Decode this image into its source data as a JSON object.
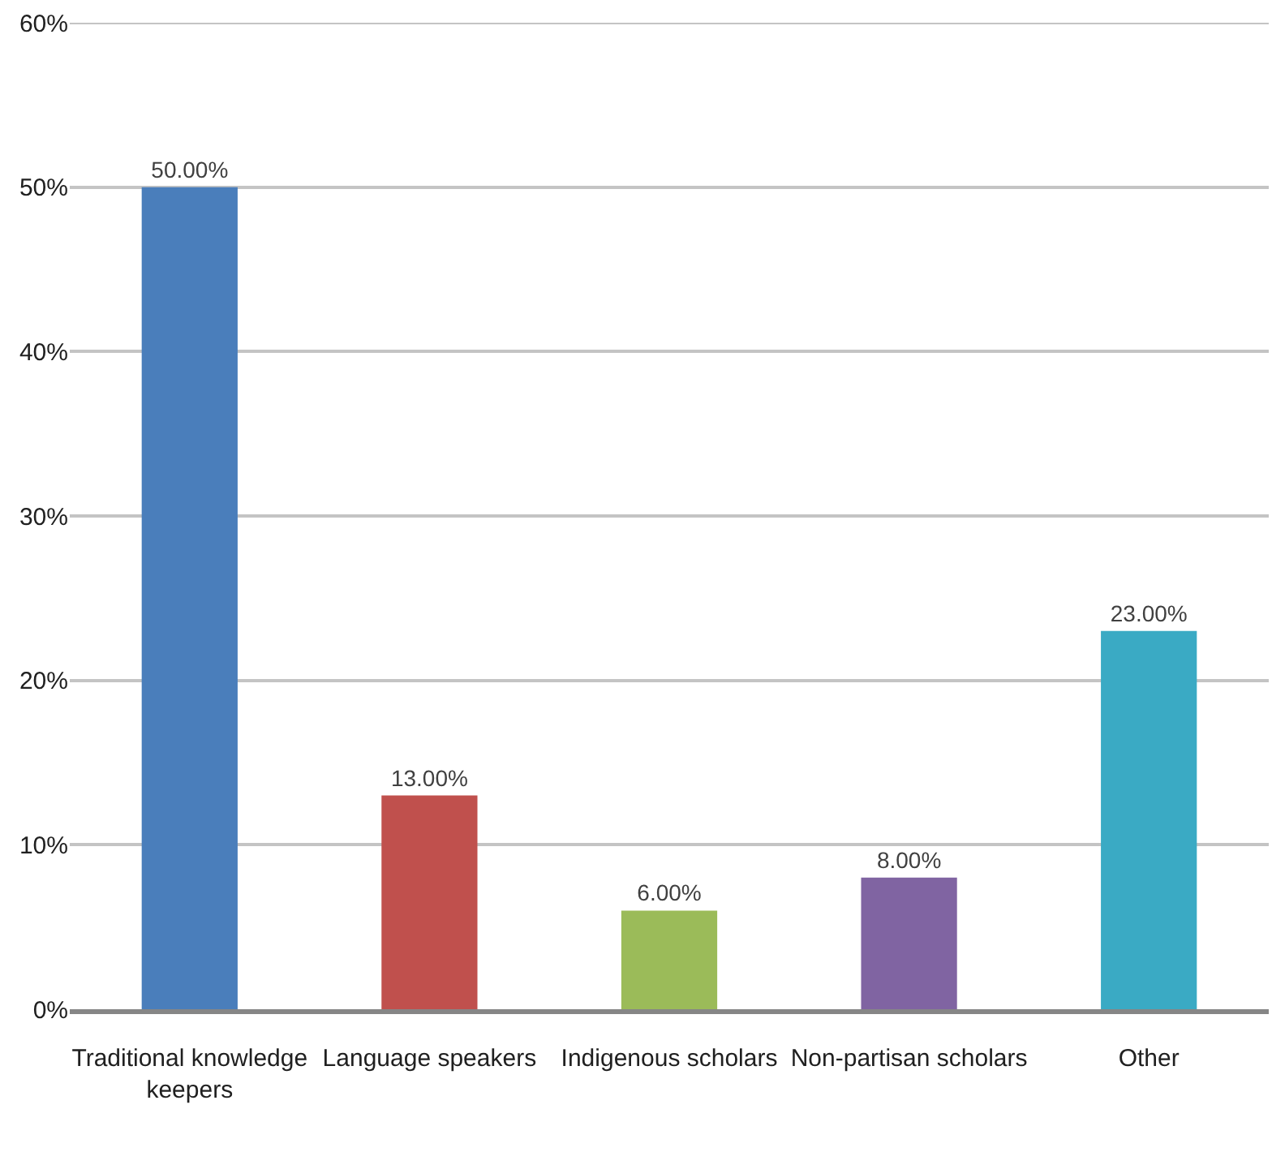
{
  "chart_data": {
    "type": "bar",
    "categories": [
      "Traditional knowledge keepers",
      "Language speakers",
      "Indigenous scholars",
      "Non-partisan scholars",
      "Other"
    ],
    "values": [
      50,
      13,
      6,
      8,
      23
    ],
    "colors": [
      "#4a7ebb",
      "#c0504d",
      "#9bbb59",
      "#8064a2",
      "#3aaac4"
    ],
    "value_labels": [
      "50.00%",
      "13.00%",
      "6.00%",
      "8.00%",
      "23.00%"
    ],
    "ylim": [
      0,
      60
    ],
    "yticks": [
      {
        "value": 0,
        "label": "0%"
      },
      {
        "value": 10,
        "label": "10%"
      },
      {
        "value": 20,
        "label": "20%"
      },
      {
        "value": 30,
        "label": "30%"
      },
      {
        "value": 40,
        "label": "40%"
      },
      {
        "value": 50,
        "label": "50%"
      },
      {
        "value": 60,
        "label": "60%"
      }
    ],
    "grid": "y"
  }
}
